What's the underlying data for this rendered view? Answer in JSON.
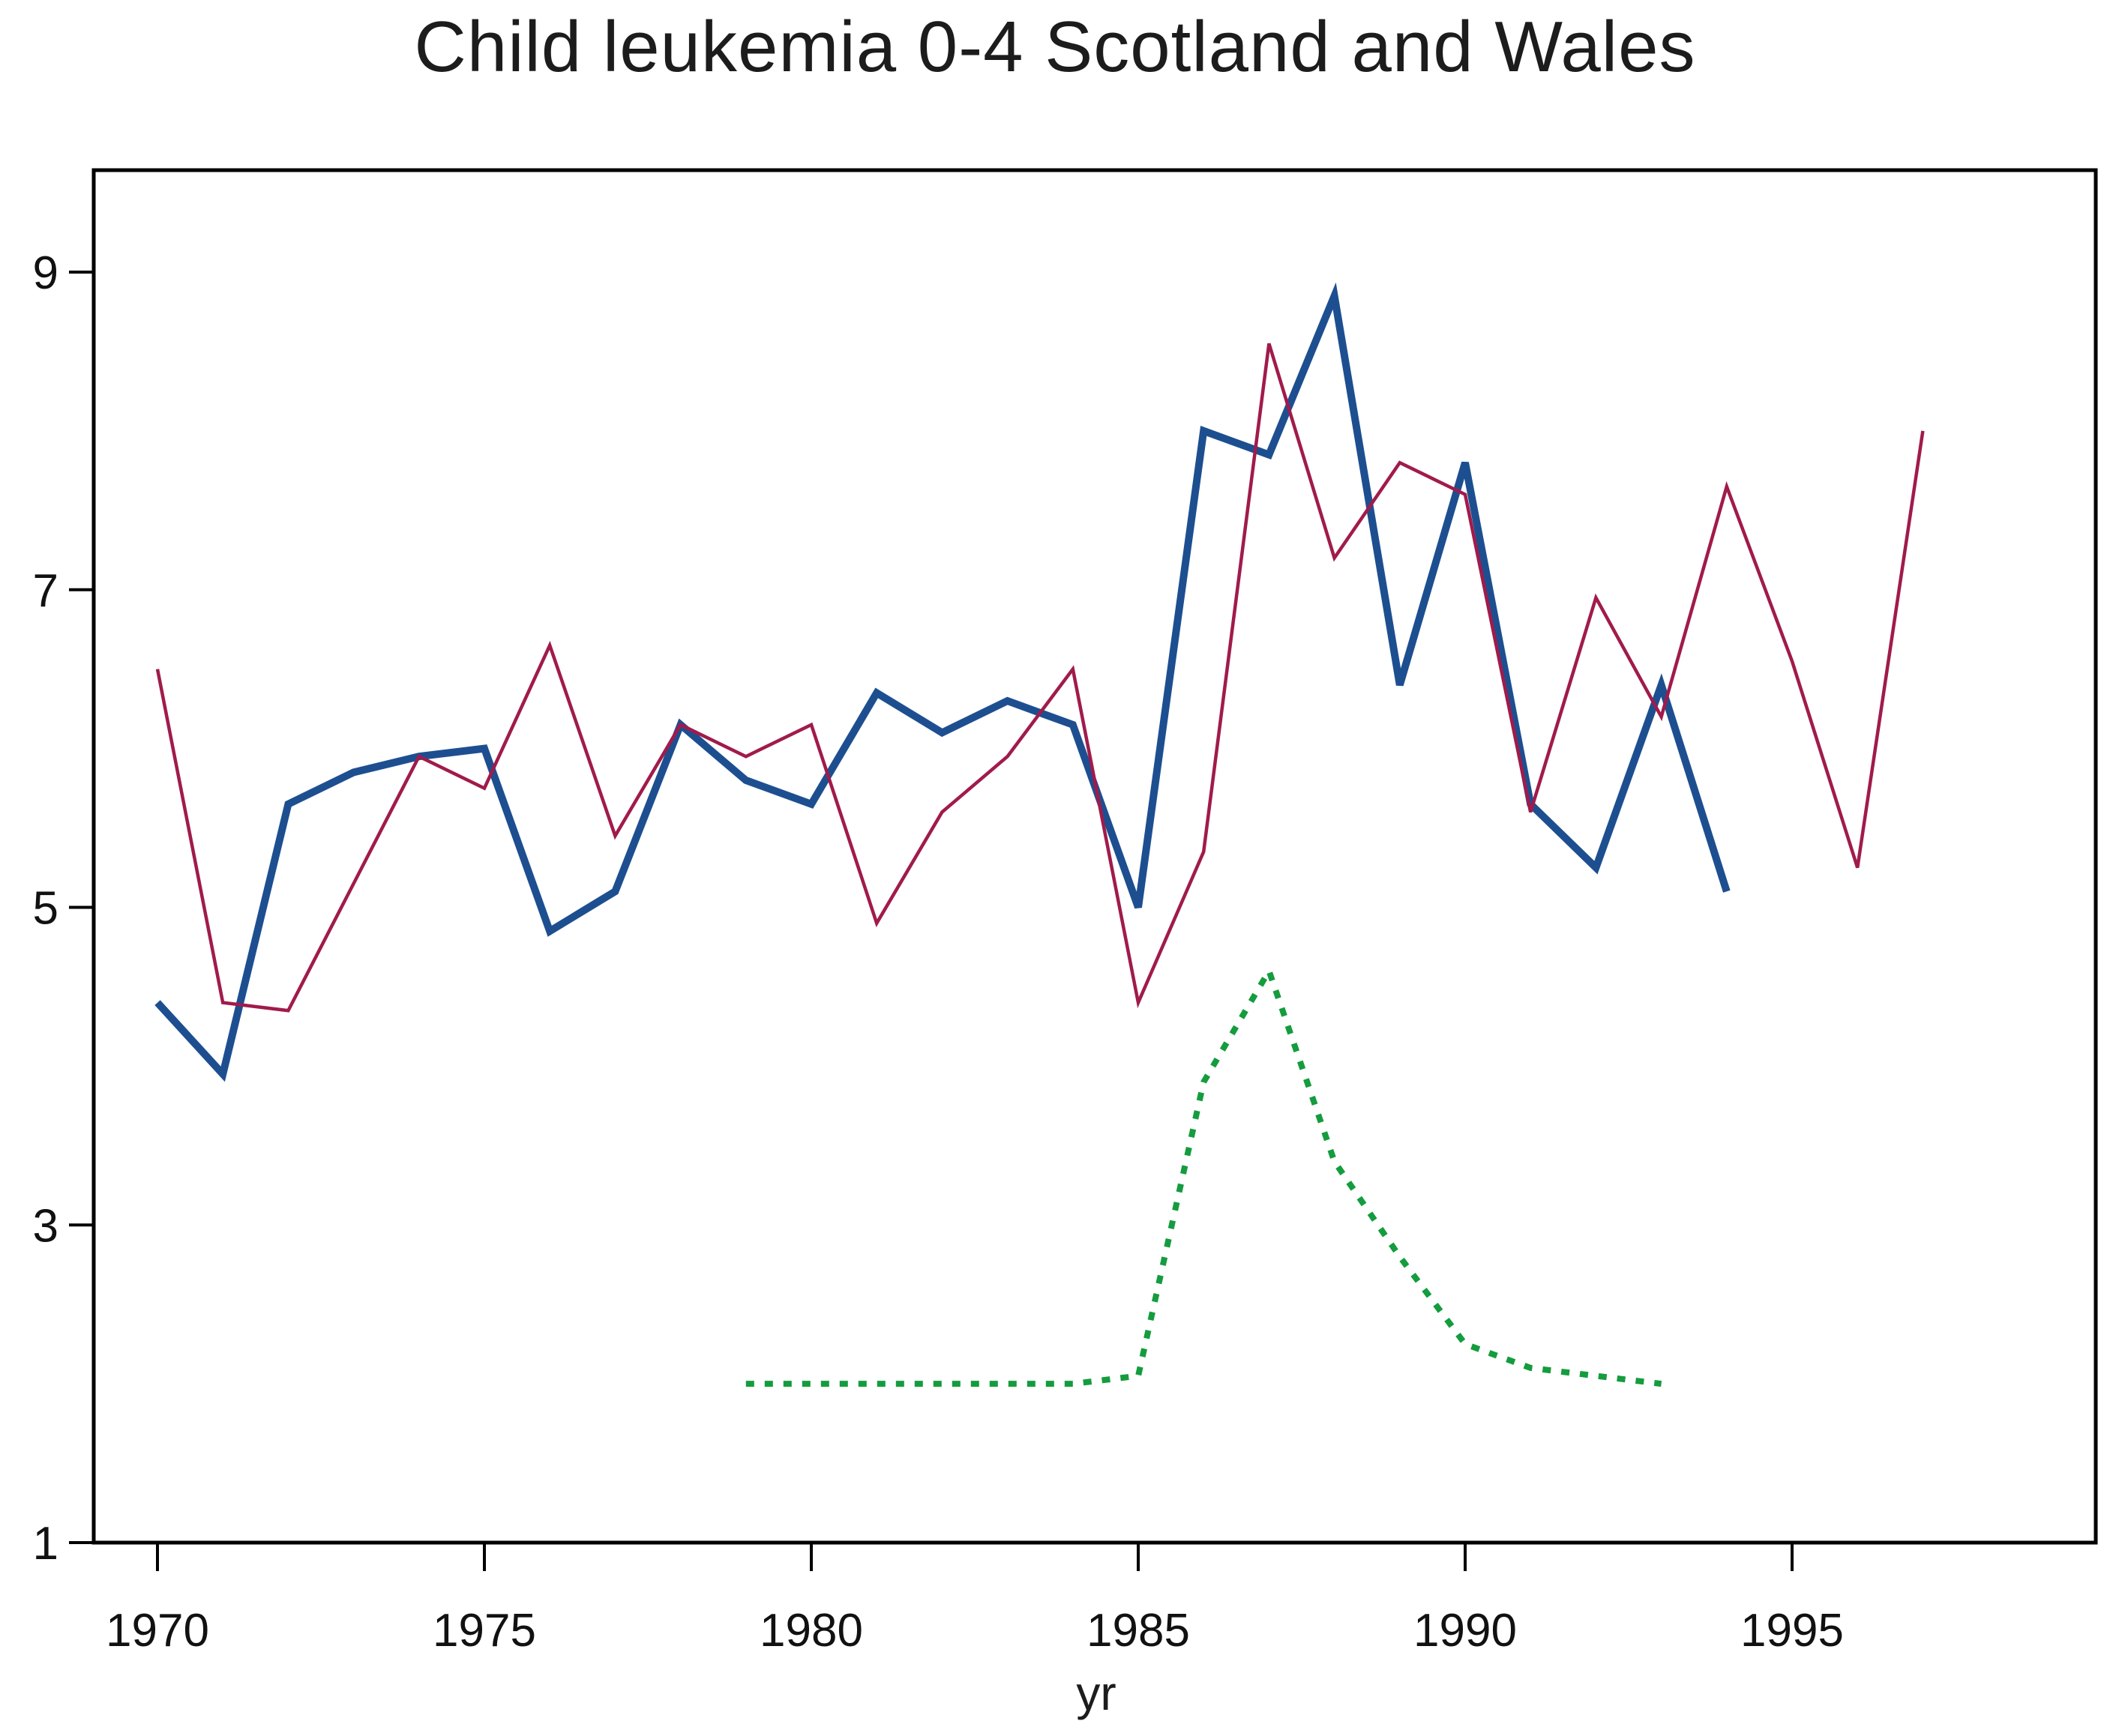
{
  "chart": {
    "title": "Child leukemia 0-4 Scotland and Wales",
    "xlabel": "yr"
  },
  "chart_data": {
    "type": "line",
    "title": "Child leukemia 0-4 Scotland and Wales",
    "xlabel": "yr",
    "ylabel": "",
    "xticks": [
      1970,
      1975,
      1980,
      1985,
      1990,
      1995
    ],
    "yticks": [
      1,
      3,
      5,
      7,
      9
    ],
    "xlim": [
      1969.0,
      1999.6
    ],
    "ylim": [
      1.0,
      9.64
    ],
    "grid": false,
    "legend": null,
    "series": [
      {
        "name": "thick-blue-line",
        "color": "#1d4f90",
        "style": "solid",
        "stroke_width": 10,
        "x": [
          1970,
          1971,
          1972,
          1973,
          1974,
          1975,
          1976,
          1977,
          1978,
          1979,
          1980,
          1981,
          1982,
          1983,
          1984,
          1985,
          1986,
          1987,
          1988,
          1989,
          1990,
          1991,
          1992,
          1993,
          1994
        ],
        "values": [
          4.4,
          3.95,
          5.65,
          5.85,
          5.95,
          6.0,
          4.85,
          5.1,
          6.15,
          5.8,
          5.65,
          6.35,
          6.1,
          6.3,
          6.15,
          5.0,
          8.0,
          7.85,
          8.85,
          6.4,
          7.8,
          5.65,
          5.25,
          6.4,
          5.1
        ]
      },
      {
        "name": "thin-crimson-line",
        "color": "#a01b4b",
        "style": "solid",
        "stroke_width": 4.5,
        "x": [
          1970,
          1971,
          1972,
          1973,
          1974,
          1975,
          1976,
          1977,
          1978,
          1979,
          1980,
          1981,
          1982,
          1983,
          1984,
          1985,
          1986,
          1987,
          1988,
          1989,
          1990,
          1991,
          1992,
          1993,
          1994,
          1995,
          1996,
          1997
        ],
        "values": [
          6.5,
          4.4,
          4.35,
          5.15,
          5.95,
          5.75,
          6.65,
          5.45,
          6.15,
          5.95,
          6.15,
          4.9,
          5.6,
          5.95,
          6.5,
          4.4,
          5.35,
          8.55,
          7.2,
          7.8,
          7.6,
          5.6,
          6.95,
          6.2,
          7.65,
          6.55,
          5.25,
          8.0
        ]
      },
      {
        "name": "dotted-green-line",
        "color": "#149c3e",
        "style": "dotted",
        "stroke_width": 8,
        "x": [
          1979,
          1980,
          1981,
          1982,
          1983,
          1984,
          1985,
          1986,
          1987,
          1988,
          1989,
          1990,
          1991,
          1992,
          1993
        ],
        "values": [
          2.0,
          2.0,
          2.0,
          2.0,
          2.0,
          2.0,
          2.05,
          3.9,
          4.6,
          3.4,
          2.8,
          2.25,
          2.1,
          2.05,
          2.0
        ]
      }
    ]
  }
}
